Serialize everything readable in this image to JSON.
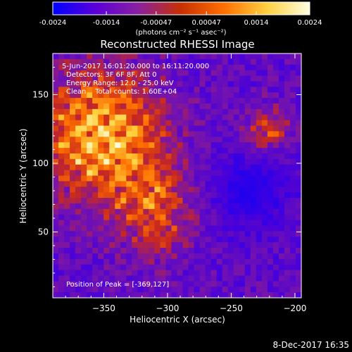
{
  "colorbar": {
    "ticks": [
      "-0.0024",
      "-0.0014",
      "-0.00047",
      "0.00047",
      "0.0014",
      "0.0024"
    ],
    "tick_values": [
      -0.0024,
      -0.0014,
      -0.00047,
      0.00047,
      0.0014,
      0.0024
    ],
    "range": [
      -0.0024,
      0.0024
    ],
    "units_label": "(photons cm⁻² s⁻¹ asec⁻²)",
    "colors": [
      "#0000ff",
      "#5a00d8",
      "#8a20a0",
      "#c83000",
      "#ff7000",
      "#ffd040",
      "#ffffe0"
    ]
  },
  "chart_data": {
    "type": "heatmap",
    "title": "Reconstructed RHESSI Image",
    "xlabel": "Heliocentric X (arcsec)",
    "ylabel": "Heliocentric Y (arcsec)",
    "xlim": [
      -390,
      -195
    ],
    "ylim": [
      2,
      180
    ],
    "xticks": [
      -350,
      -300,
      -250,
      -200
    ],
    "xtick_labels": [
      "−350",
      "−300",
      "−250",
      "−200"
    ],
    "yticks": [
      50,
      100,
      150
    ],
    "ytick_labels": [
      "50",
      "100",
      "150"
    ],
    "annotations": [
      "5-Jun-2017 16:01:20.000 to 16:11:20.000",
      "Detectors: 3F 6F 8F, Att 0",
      "Energy Range: 12.0 - 25.0 keV",
      "Clean    Total counts: 1.60E+04"
    ],
    "peak_label": "Position of Peak = [-369,127]",
    "peak_position": [
      -369,
      127
    ],
    "grid": false
  },
  "footer": {
    "date_stamp": "8-Dec-2017 16:35"
  }
}
